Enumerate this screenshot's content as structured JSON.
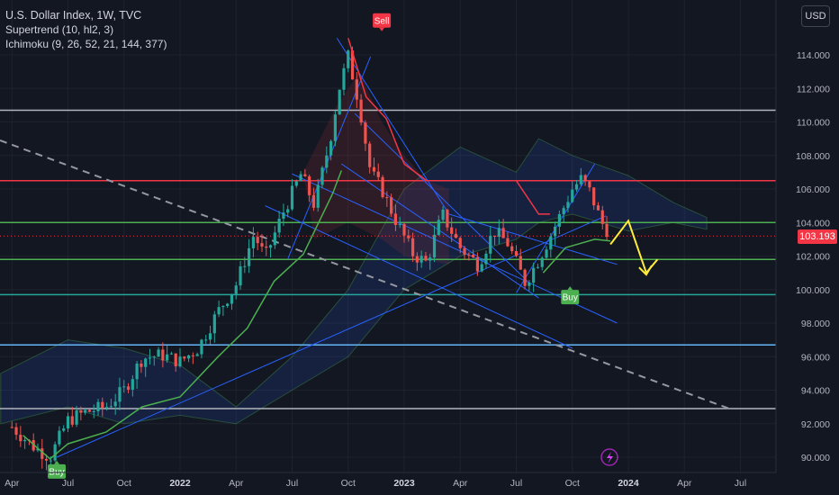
{
  "legend": {
    "title": "U.S. Dollar Index, 1W, TVC",
    "indicator1": "Supertrend (10, hl2, 3)",
    "indicator2": "Ichimoku (9, 26, 52, 21, 144, 377)"
  },
  "currency_button": "USD",
  "last_price": "103.193",
  "signals": {
    "sell": "Sell",
    "buy1": "Buy",
    "buy2": "Buy"
  },
  "colors": {
    "background": "#131722",
    "bull": "#26a69a",
    "bear": "#ef5350",
    "resistance": "#f23645",
    "support": "#4caf50",
    "level_white": "#b2b5be",
    "level_blue": "#64b5f6",
    "trendline": "#2962ff",
    "forecast": "#ffeb3b"
  },
  "chart_data": {
    "type": "line",
    "title": "U.S. Dollar Index, 1W, TVC",
    "xlabel": "",
    "ylabel": "",
    "ylim": [
      89.5,
      116
    ],
    "y_ticks": [
      "114.000",
      "112.000",
      "110.000",
      "108.000",
      "106.000",
      "104.000",
      "102.000",
      "100.000",
      "98.000",
      "96.000",
      "94.000",
      "92.000",
      "90.000"
    ],
    "x_ticks": [
      {
        "label": "Apr",
        "bold": false
      },
      {
        "label": "Jul",
        "bold": false
      },
      {
        "label": "Oct",
        "bold": false
      },
      {
        "label": "2022",
        "bold": true
      },
      {
        "label": "Apr",
        "bold": false
      },
      {
        "label": "Jul",
        "bold": false
      },
      {
        "label": "Oct",
        "bold": false
      },
      {
        "label": "2023",
        "bold": true
      },
      {
        "label": "Apr",
        "bold": false
      },
      {
        "label": "Jul",
        "bold": false
      },
      {
        "label": "Oct",
        "bold": false
      },
      {
        "label": "2024",
        "bold": true
      },
      {
        "label": "Apr",
        "bold": false
      },
      {
        "label": "Jul",
        "bold": false
      }
    ],
    "horizontal_levels": [
      {
        "value": 110.7,
        "color": "#b2b5be"
      },
      {
        "value": 106.5,
        "color": "#f23645"
      },
      {
        "value": 104.0,
        "color": "#4caf50"
      },
      {
        "value": 101.8,
        "color": "#4caf50"
      },
      {
        "value": 99.7,
        "color": "#26a69a"
      },
      {
        "value": 96.7,
        "color": "#64b5f6"
      },
      {
        "value": 92.9,
        "color": "#b2b5be"
      }
    ],
    "price_path": [
      [
        2021.25,
        91.8
      ],
      [
        2021.35,
        90.6
      ],
      [
        2021.42,
        90.0
      ],
      [
        2021.5,
        92.2
      ],
      [
        2021.58,
        92.7
      ],
      [
        2021.67,
        93.0
      ],
      [
        2021.75,
        94.0
      ],
      [
        2021.83,
        95.9
      ],
      [
        2021.92,
        96.1
      ],
      [
        2022.0,
        95.7
      ],
      [
        2022.08,
        96.5
      ],
      [
        2022.17,
        98.7
      ],
      [
        2022.25,
        100.3
      ],
      [
        2022.33,
        103.3
      ],
      [
        2022.38,
        101.9
      ],
      [
        2022.46,
        104.6
      ],
      [
        2022.54,
        106.9
      ],
      [
        2022.6,
        105.0
      ],
      [
        2022.67,
        109.0
      ],
      [
        2022.71,
        112.0
      ],
      [
        2022.75,
        113.9
      ],
      [
        2022.8,
        111.0
      ],
      [
        2022.85,
        107.0
      ],
      [
        2022.9,
        106.0
      ],
      [
        2022.96,
        104.2
      ],
      [
        2023.04,
        102.1
      ],
      [
        2023.1,
        101.6
      ],
      [
        2023.17,
        104.5
      ],
      [
        2023.25,
        102.5
      ],
      [
        2023.33,
        101.5
      ],
      [
        2023.4,
        103.5
      ],
      [
        2023.46,
        102.8
      ],
      [
        2023.54,
        100.4
      ],
      [
        2023.6,
        101.8
      ],
      [
        2023.67,
        103.7
      ],
      [
        2023.75,
        106.0
      ],
      [
        2023.79,
        106.6
      ],
      [
        2023.83,
        105.8
      ],
      [
        2023.88,
        104.0
      ],
      [
        2023.92,
        103.3
      ]
    ],
    "supertrend_path": [
      [
        2021.3,
        91.3
      ],
      [
        2021.42,
        89.9
      ],
      [
        2021.5,
        90.8
      ],
      [
        2021.67,
        91.5
      ],
      [
        2021.83,
        93.0
      ],
      [
        2022.0,
        93.6
      ],
      [
        2022.17,
        96.0
      ],
      [
        2022.3,
        97.7
      ],
      [
        2022.42,
        100.5
      ],
      [
        2022.55,
        102.1
      ],
      [
        2022.68,
        105.7
      ],
      [
        2022.72,
        107.1
      ]
    ],
    "supertrend_red": [
      [
        2022.75,
        115.0
      ],
      [
        2022.83,
        111.5
      ],
      [
        2022.92,
        110.2
      ],
      [
        2023.0,
        107.5
      ],
      [
        2023.1,
        106.5
      ],
      [
        2023.5,
        106.5
      ],
      [
        2023.6,
        104.5
      ],
      [
        2023.65,
        104.5
      ]
    ],
    "supertrend_green2": [
      [
        2023.62,
        101.0
      ],
      [
        2023.72,
        102.5
      ],
      [
        2023.85,
        103.0
      ],
      [
        2023.92,
        102.9
      ]
    ],
    "forecast_path": [
      [
        2023.92,
        102.7
      ],
      [
        2024.0,
        104.1
      ],
      [
        2024.08,
        101.0
      ],
      [
        2024.13,
        101.8
      ]
    ]
  }
}
